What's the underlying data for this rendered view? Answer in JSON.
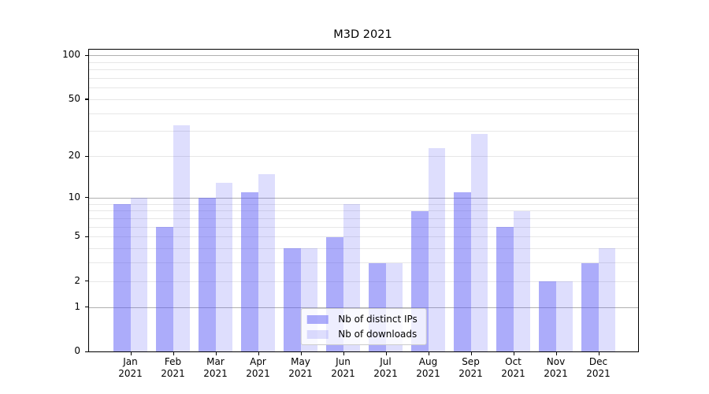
{
  "title": "M3D 2021",
  "chart_data": {
    "type": "bar",
    "title": "M3D 2021",
    "categories": [
      "Jan 2021",
      "Feb 2021",
      "Mar 2021",
      "Apr 2021",
      "May 2021",
      "Jun 2021",
      "Jul 2021",
      "Aug 2021",
      "Sep 2021",
      "Oct 2021",
      "Nov 2021",
      "Dec 2021"
    ],
    "series": [
      {
        "name": "Nb of distinct IPs",
        "color": "rgba(90,90,245,0.5)",
        "values": [
          9,
          6,
          10,
          11,
          4,
          5,
          3,
          8,
          11,
          6,
          2,
          3
        ]
      },
      {
        "name": "Nb of downloads",
        "color": "rgba(90,90,245,0.2)",
        "values": [
          10,
          33,
          13,
          15,
          4,
          9,
          3,
          23,
          29,
          8,
          2,
          4
        ]
      }
    ],
    "xlabel": "",
    "ylabel": "",
    "yscale": "log1p",
    "ylim": [
      0,
      110
    ],
    "yticks": [
      0,
      1,
      2,
      5,
      10,
      20,
      50,
      100
    ],
    "major_gridlines": [
      1,
      10,
      100
    ],
    "minor_gridlines": [
      2,
      3,
      4,
      5,
      6,
      7,
      8,
      9,
      20,
      30,
      40,
      50,
      60,
      70,
      80,
      90
    ],
    "grid": "horizontal",
    "legend_position": "lower center"
  },
  "colors": {
    "major_grid": "#b0b0b0",
    "minor_grid": "#e7e7e7",
    "spine": "#000000",
    "background": "#ffffff"
  }
}
